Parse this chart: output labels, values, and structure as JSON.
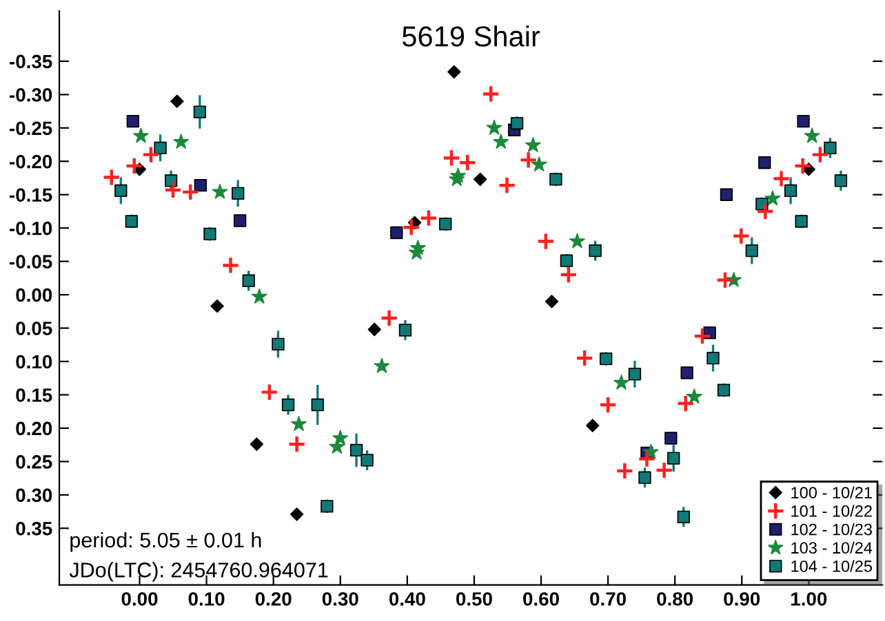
{
  "chart_data": {
    "type": "scatter",
    "title": "5619 Shair",
    "annotations": [
      "period: 5.05 ± 0.01 h",
      "JDo(LTC): 2454760.964071"
    ],
    "xlim": [
      -0.12,
      1.11
    ],
    "ylim": [
      0.435,
      -0.425
    ],
    "xticks": [
      {
        "value": 0,
        "label": "0.00"
      },
      {
        "value": 0.1,
        "label": "0.10"
      },
      {
        "value": 0.2,
        "label": "0.20"
      },
      {
        "value": 0.3,
        "label": "0.30"
      },
      {
        "value": 0.4,
        "label": "0.40"
      },
      {
        "value": 0.5,
        "label": "0.50"
      },
      {
        "value": 0.6,
        "label": "0.60"
      },
      {
        "value": 0.7,
        "label": "0.70"
      },
      {
        "value": 0.8,
        "label": "0.80"
      },
      {
        "value": 0.9,
        "label": "0.90"
      },
      {
        "value": 1,
        "label": "1.00"
      }
    ],
    "yticks": [
      {
        "value": -0.35,
        "label": "-0.35"
      },
      {
        "value": -0.3,
        "label": "-0.30"
      },
      {
        "value": -0.25,
        "label": "-0.25"
      },
      {
        "value": -0.2,
        "label": "-0.20"
      },
      {
        "value": -0.15,
        "label": "-0.15"
      },
      {
        "value": -0.1,
        "label": "-0.10"
      },
      {
        "value": -0.05,
        "label": "-0.05"
      },
      {
        "value": 0,
        "label": "0.00"
      },
      {
        "value": 0.05,
        "label": "0.05"
      },
      {
        "value": 0.1,
        "label": "0.10"
      },
      {
        "value": 0.15,
        "label": "0.15"
      },
      {
        "value": 0.2,
        "label": "0.20"
      },
      {
        "value": 0.25,
        "label": "0.25"
      },
      {
        "value": 0.3,
        "label": "0.30"
      },
      {
        "value": 0.35,
        "label": "0.35"
      }
    ],
    "grid": false,
    "legend": "bottom right",
    "series": [
      {
        "name": "100 - 10/21",
        "color": "#000000",
        "marker": "diamond",
        "x": [
          0.056,
          0.0,
          0.116,
          0.175,
          0.235,
          0.47,
          0.509,
          0.411,
          0.351,
          0.616,
          0.677,
          1.0
        ],
        "values": [
          -0.29,
          -0.188,
          0.017,
          0.224,
          0.329,
          -0.334,
          -0.173,
          -0.108,
          0.052,
          0.01,
          0.196,
          -0.188
        ]
      },
      {
        "name": "101 - 10/22",
        "color": "#ff2020",
        "marker": "cross",
        "x": [
          -0.042,
          -0.008,
          0.017,
          0.05,
          0.076,
          0.136,
          0.194,
          0.235,
          0.525,
          0.466,
          0.49,
          0.549,
          0.581,
          0.432,
          0.406,
          0.373,
          0.607,
          0.641,
          0.665,
          0.7,
          0.725,
          0.758,
          0.784,
          0.816,
          0.841,
          0.875,
          0.899,
          0.935,
          0.959,
          0.991,
          1.017
        ],
        "values": [
          -0.176,
          -0.193,
          -0.21,
          -0.157,
          -0.154,
          -0.044,
          0.146,
          0.224,
          -0.301,
          -0.205,
          -0.198,
          -0.164,
          -0.202,
          -0.115,
          -0.101,
          0.035,
          -0.08,
          -0.03,
          0.095,
          0.165,
          0.264,
          0.246,
          0.263,
          0.163,
          0.062,
          -0.022,
          -0.088,
          -0.125,
          -0.174,
          -0.193,
          -0.21
        ]
      },
      {
        "name": "102 - 10/23",
        "color": "#1f1f6e",
        "marker": "square",
        "x": [
          -0.01,
          0.091,
          0.15,
          0.384,
          0.56,
          0.852,
          0.818,
          0.794,
          0.758,
          0.877,
          0.934,
          0.992
        ],
        "values": [
          -0.26,
          -0.164,
          -0.111,
          -0.093,
          -0.247,
          0.057,
          0.117,
          0.215,
          0.237,
          -0.15,
          -0.198,
          -0.26
        ]
      },
      {
        "name": "103 - 10/24",
        "color": "#1a8a3a",
        "marker": "star",
        "x": [
          0.002,
          0.062,
          0.12,
          0.179,
          0.238,
          0.3,
          0.295,
          0.362,
          0.416,
          0.414,
          0.476,
          0.474,
          0.53,
          0.54,
          0.588,
          0.597,
          0.654,
          0.72,
          0.764,
          0.829,
          0.888,
          0.946,
          1.005
        ],
        "values": [
          -0.238,
          -0.229,
          -0.154,
          0.003,
          0.194,
          0.215,
          0.228,
          0.107,
          -0.07,
          -0.063,
          -0.178,
          -0.173,
          -0.25,
          -0.229,
          -0.224,
          -0.195,
          -0.08,
          0.132,
          0.236,
          0.153,
          -0.022,
          -0.144,
          -0.238
        ]
      },
      {
        "name": "104 - 10/25",
        "color": "#0f7a78",
        "marker": "square",
        "x": [
          -0.028,
          -0.012,
          0.031,
          0.047,
          0.09,
          0.105,
          0.147,
          0.163,
          0.207,
          0.222,
          0.266,
          0.28,
          0.324,
          0.34,
          0.397,
          0.457,
          0.564,
          0.622,
          0.638,
          0.681,
          0.697,
          0.74,
          0.755,
          0.798,
          0.813,
          0.857,
          0.873,
          0.915,
          0.93,
          0.973,
          0.989,
          1.032,
          1.048
        ],
        "values": [
          -0.156,
          -0.11,
          -0.22,
          -0.171,
          -0.274,
          -0.091,
          -0.152,
          -0.021,
          0.074,
          0.165,
          0.165,
          0.317,
          0.233,
          0.248,
          0.053,
          -0.106,
          -0.257,
          -0.173,
          -0.051,
          -0.066,
          0.096,
          0.119,
          0.274,
          0.245,
          0.333,
          0.095,
          0.143,
          -0.066,
          -0.136,
          -0.156,
          -0.11,
          -0.22,
          -0.171
        ],
        "errors": [
          0.02,
          0.01,
          0.02,
          0.015,
          0.025,
          0.01,
          0.02,
          0.015,
          0.02,
          0.015,
          0.03,
          0.01,
          0.025,
          0.015,
          0.015,
          0.01,
          0.01,
          0.01,
          0.01,
          0.015,
          0.01,
          0.02,
          0.015,
          0.02,
          0.015,
          0.02,
          0.01,
          0.02,
          0.01,
          0.02,
          0.01,
          0.015,
          0.015
        ]
      }
    ]
  }
}
